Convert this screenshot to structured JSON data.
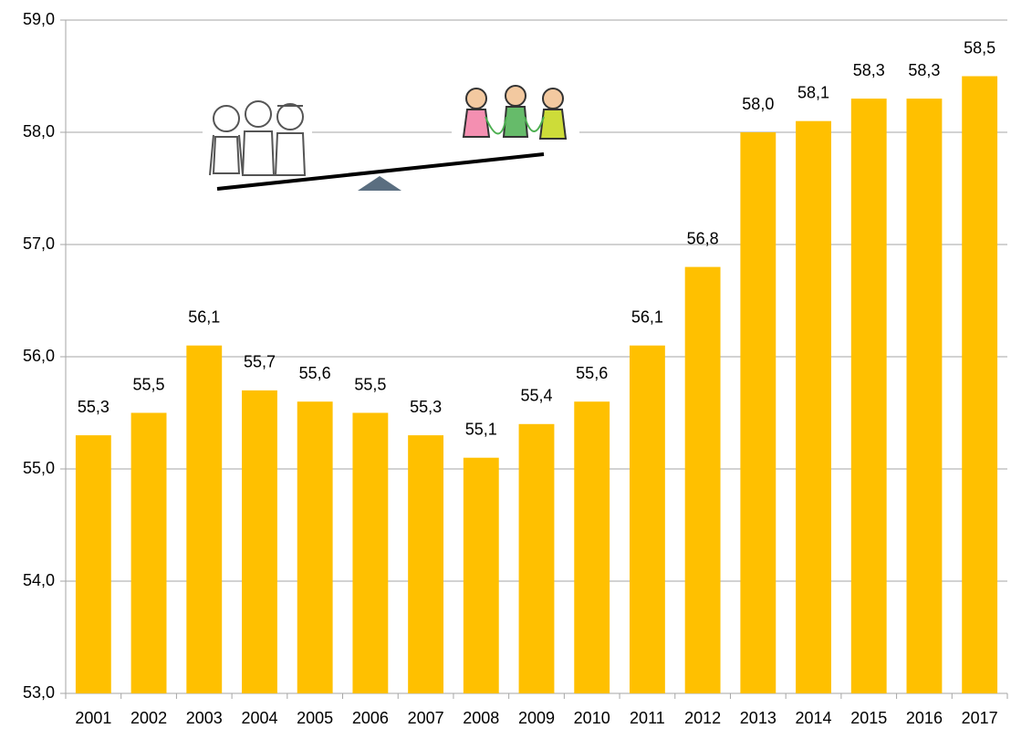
{
  "chart_data": {
    "type": "bar",
    "categories": [
      "2001",
      "2002",
      "2003",
      "2004",
      "2005",
      "2006",
      "2007",
      "2008",
      "2009",
      "2010",
      "2011",
      "2012",
      "2013",
      "2014",
      "2015",
      "2016",
      "2017"
    ],
    "values": [
      55.3,
      55.5,
      56.1,
      55.7,
      55.6,
      55.5,
      55.3,
      55.1,
      55.4,
      55.6,
      56.1,
      56.8,
      58.0,
      58.1,
      58.3,
      58.3,
      58.5
    ],
    "value_labels": [
      "55,3",
      "55,5",
      "56,1",
      "55,7",
      "55,6",
      "55,5",
      "55,3",
      "55,1",
      "55,4",
      "55,6",
      "56,1",
      "56,8",
      "58,0",
      "58,1",
      "58,3",
      "58,3",
      "58,5"
    ],
    "color": "#ffc000",
    "ylim": [
      53,
      59
    ],
    "yticks": [
      {
        "value": 53,
        "label": "53,0"
      },
      {
        "value": 54,
        "label": "54,0"
      },
      {
        "value": 55,
        "label": "55,0"
      },
      {
        "value": 56,
        "label": "56,0"
      },
      {
        "value": 57,
        "label": "57,0"
      },
      {
        "value": 58,
        "label": "58,0"
      },
      {
        "value": 59,
        "label": "59,0"
      }
    ],
    "grid": true
  }
}
